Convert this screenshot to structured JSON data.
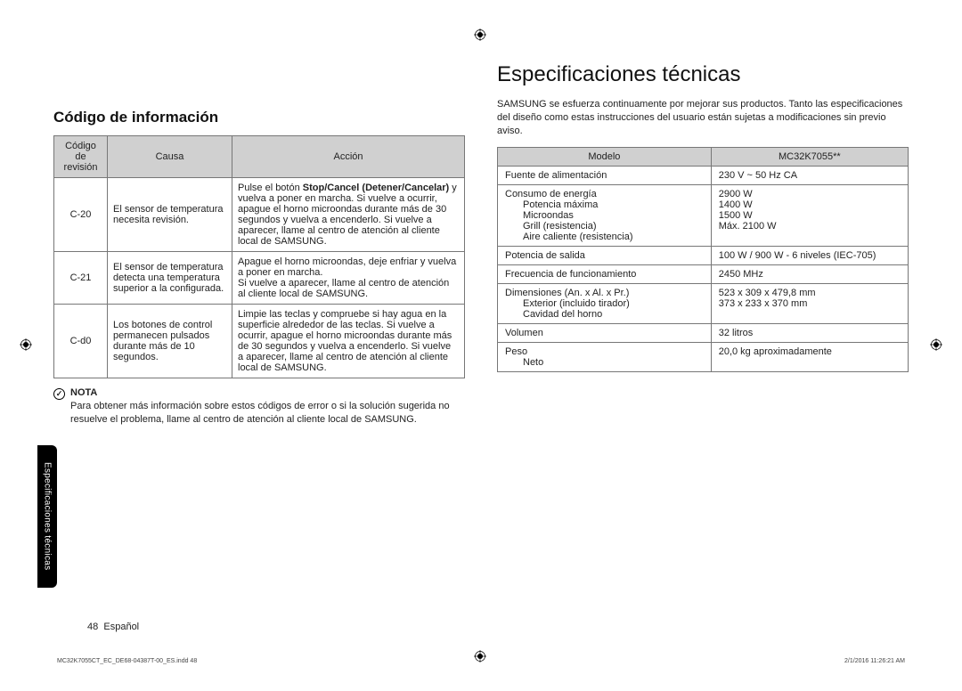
{
  "headings": {
    "h1": "Especificaciones técnicas",
    "h2": "Código de información"
  },
  "intro": "SAMSUNG se esfuerza continuamente por mejorar sus productos. Tanto las especificaciones del diseño como estas instrucciones del usuario están sujetas a modificaciones sin previo aviso.",
  "codes_table": {
    "headers": {
      "c1": "Código de revisión",
      "c2": "Causa",
      "c3": "Acción"
    },
    "rows": [
      {
        "code": "C-20",
        "cause": "El sensor de temperatura necesita revisión.",
        "action_pre": "Pulse el botón ",
        "action_bold": "Stop/Cancel (Detener/Cancelar)",
        "action_post": " y vuelva a poner en marcha. Si vuelve a ocurrir, apague el horno microondas durante más de 30 segundos y vuelva a encenderlo. Si vuelve a aparecer, llame al centro de atención al cliente local de SAMSUNG."
      },
      {
        "code": "C-21",
        "cause": "El sensor de temperatura detecta una temperatura superior a la configurada.",
        "action": "Apague el horno microondas, deje enfriar y vuelva a poner en marcha.\nSi vuelve a aparecer, llame al centro de atención al cliente local de SAMSUNG."
      },
      {
        "code": "C-d0",
        "cause": "Los botones de control permanecen pulsados durante más de 10 segundos.",
        "action": "Limpie las teclas y compruebe si hay agua en la superficie alrededor de las teclas. Si vuelve a ocurrir, apague el horno microondas durante más de 30 segundos y vuelva a encenderlo. Si vuelve a aparecer, llame al centro de atención al cliente local de SAMSUNG."
      }
    ]
  },
  "nota": {
    "title": "NOTA",
    "body": "Para obtener más información sobre estos códigos de error o si la solución sugerida no resuelve el problema, llame al centro de atención al cliente local de SAMSUNG."
  },
  "specs_table": {
    "headers": {
      "k": "Modelo",
      "v": "MC32K7055**"
    },
    "rows": [
      {
        "k": "Fuente de alimentación",
        "v": "230 V ~ 50 Hz CA",
        "ksub": [],
        "vsub": []
      },
      {
        "k": "Consumo de energía",
        "v": "",
        "ksub": [
          "Potencia máxima",
          "Microondas",
          "Grill (resistencia)",
          "Aire caliente (resistencia)"
        ],
        "vsub": [
          "2900 W",
          "1400 W",
          "1500 W",
          "Máx. 2100 W"
        ]
      },
      {
        "k": "Potencia de salida",
        "v": "100 W / 900 W - 6 niveles (IEC-705)",
        "ksub": [],
        "vsub": []
      },
      {
        "k": "Frecuencia de funcionamiento",
        "v": "2450 MHz",
        "ksub": [],
        "vsub": []
      },
      {
        "k": "Dimensiones (An. x Al. x Pr.)",
        "v": "",
        "ksub": [
          "Exterior (incluido tirador)",
          "Cavidad del horno"
        ],
        "vsub": [
          "523 x 309 x 479,8 mm",
          "373 x 233 x 370 mm"
        ]
      },
      {
        "k": "Volumen",
        "v": "32 litros",
        "ksub": [],
        "vsub": []
      },
      {
        "k": "Peso",
        "v": "",
        "ksub": [
          "Neto"
        ],
        "vsub": [
          "20,0 kg aproximadamente"
        ]
      }
    ]
  },
  "side_tab": "Especificaciones técnicas",
  "footer": {
    "page": "48",
    "lang": "Español"
  },
  "tiny": {
    "left": "MC32K7055CT_EC_DE68-04387T-00_ES.indd   48",
    "right": "2/1/2016   11:26:21 AM"
  },
  "colors": {
    "header_bg": "#d0d0d0",
    "border": "#777777",
    "text": "#222222",
    "tab_bg": "#000000",
    "tab_fg": "#ffffff"
  }
}
